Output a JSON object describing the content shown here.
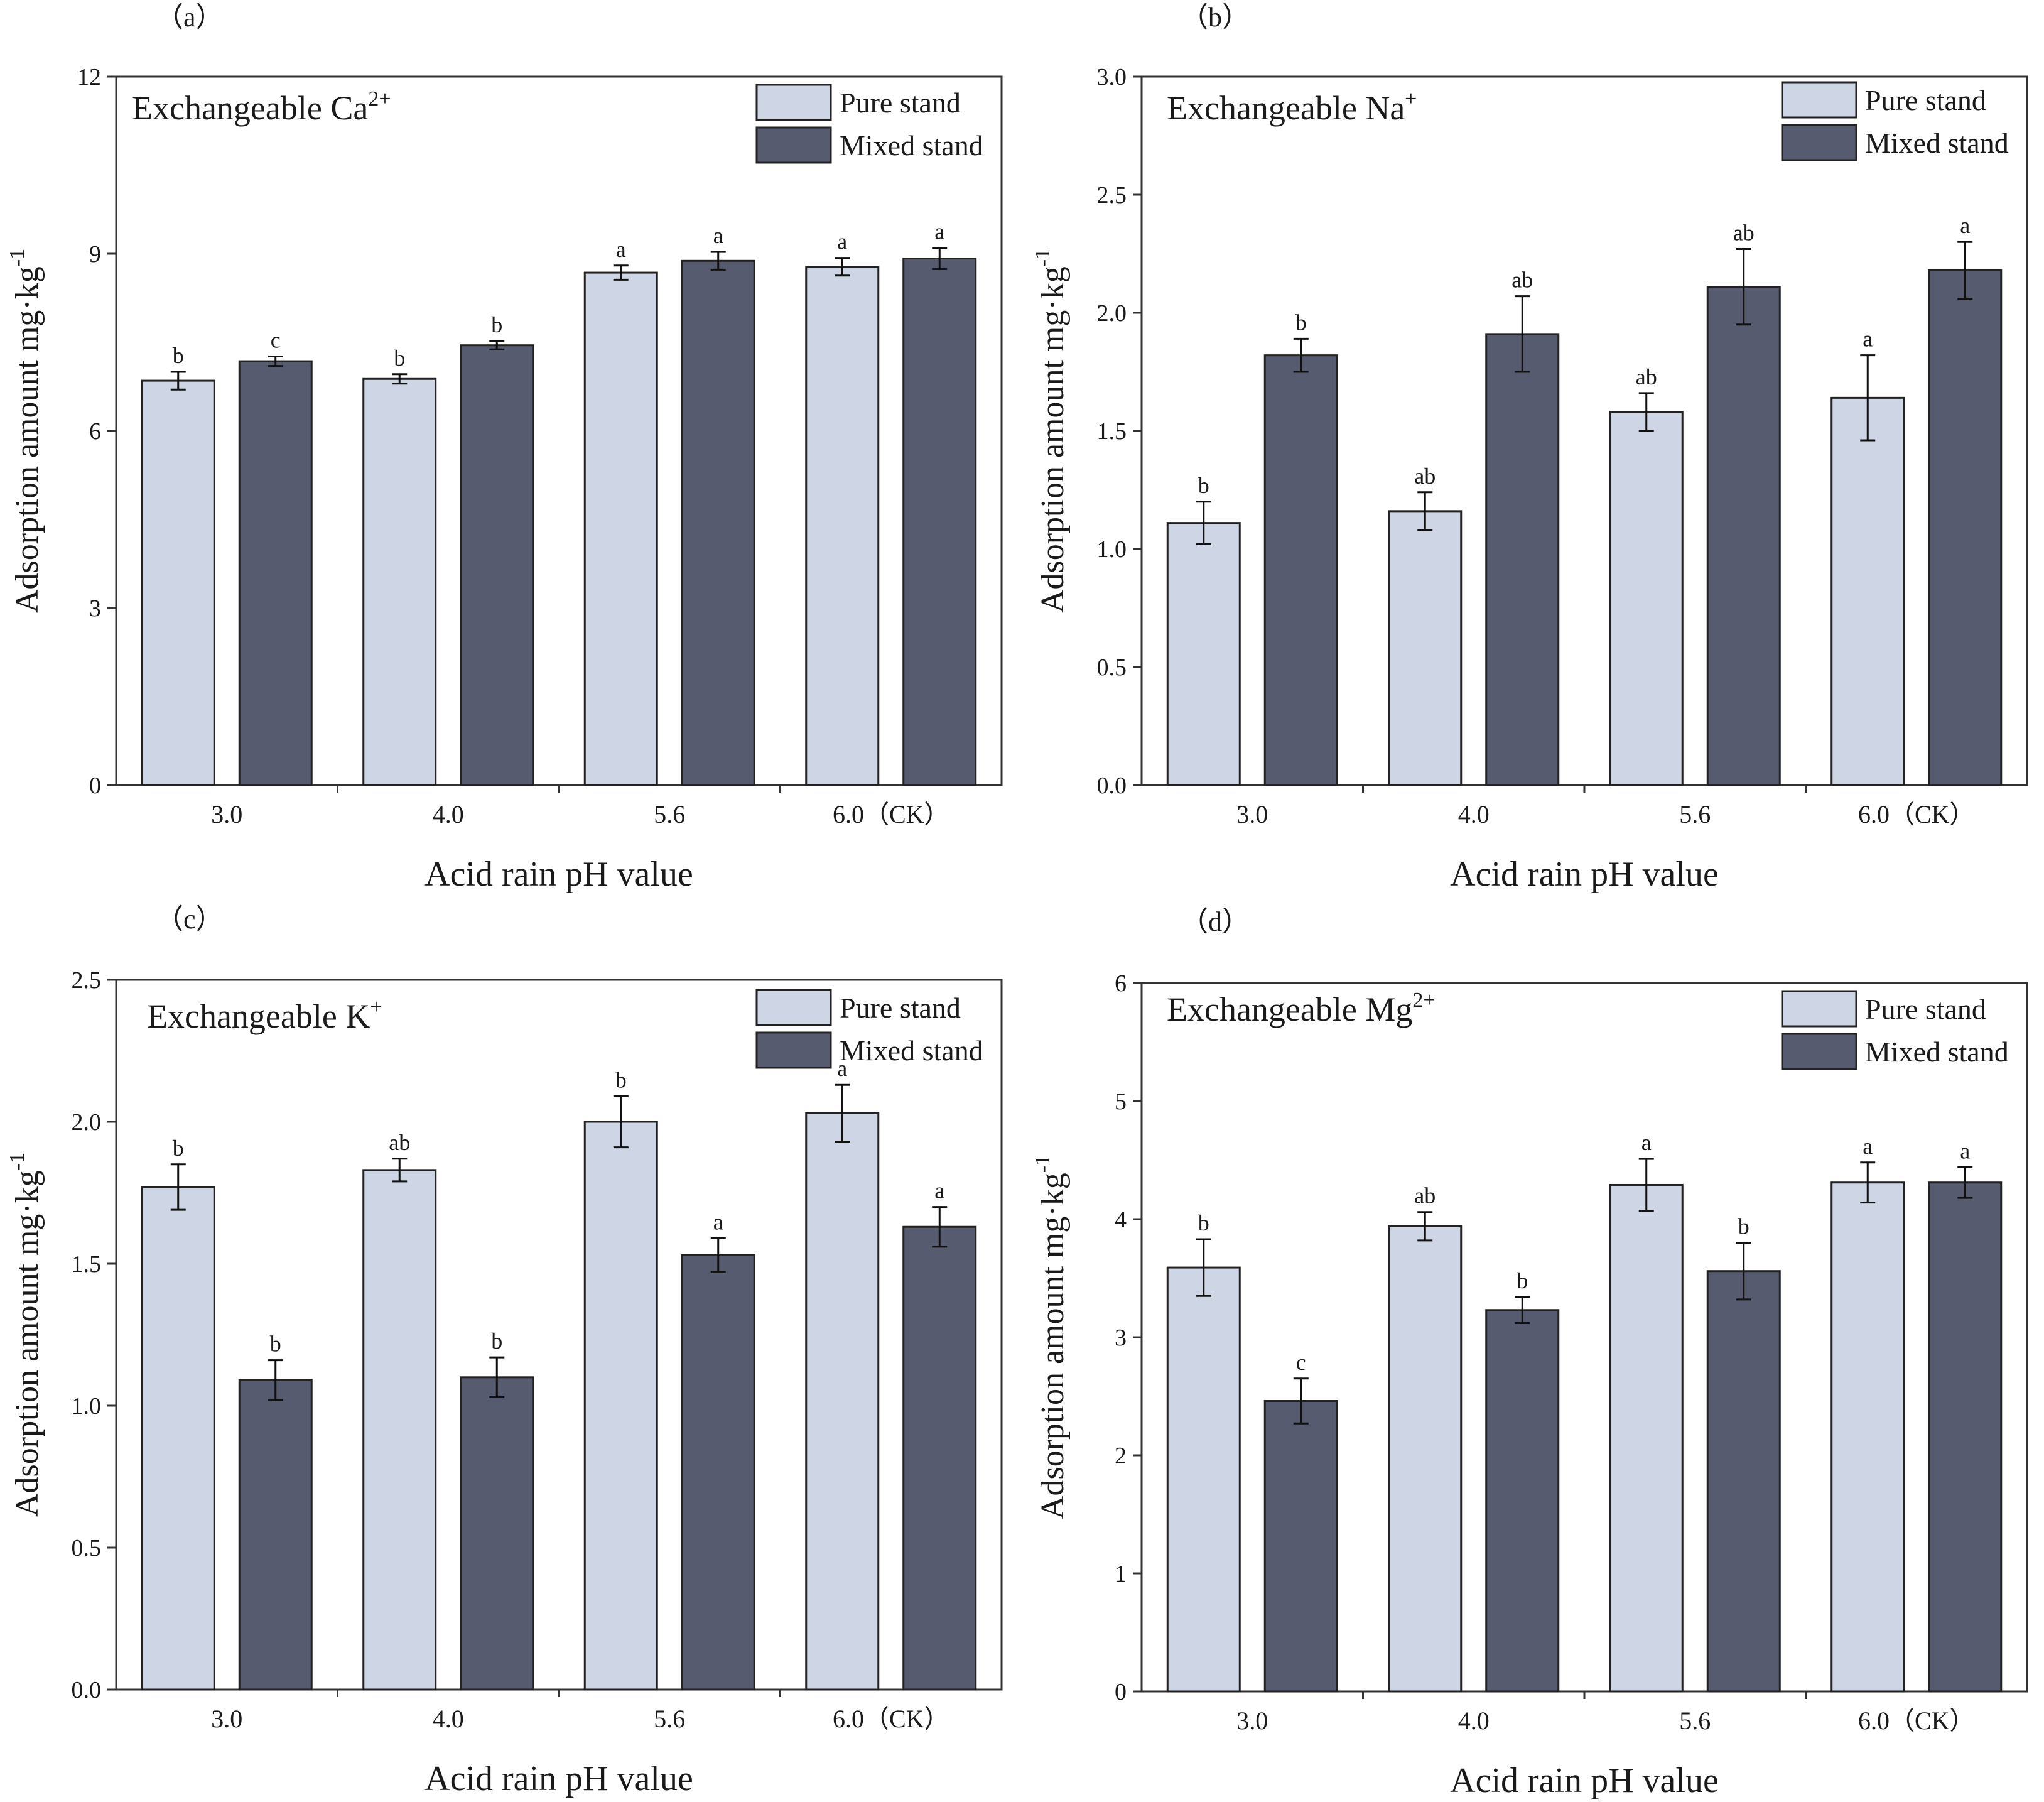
{
  "colors": {
    "pure_stand": "#ced6e6",
    "mixed_stand": "#565b70",
    "axis": "#333333",
    "bar_edge": "#222222"
  },
  "chart_data": [
    {
      "type": "bar",
      "panel_label": "（a）",
      "title": "Exchangeable Ca",
      "title_superscript": "2+",
      "xlabel": "Acid rain pH value",
      "ylabel": "Adsorption amount mg·kg",
      "ylabel_superscript": "-1",
      "ylim": [
        0,
        12
      ],
      "yticks": [
        0,
        3,
        6,
        9,
        12
      ],
      "ytick_labels": [
        "0",
        "3",
        "6",
        "9",
        "12"
      ],
      "categories": [
        "3.0",
        "4.0",
        "5.6",
        "6.0（CK）"
      ],
      "legend": [
        "Pure stand",
        "Mixed stand"
      ],
      "series": [
        {
          "name": "Pure stand",
          "values": [
            6.85,
            6.88,
            8.68,
            8.78
          ],
          "errors": [
            0.15,
            0.08,
            0.12,
            0.15
          ],
          "letters": [
            "b",
            "b",
            "a",
            "a"
          ]
        },
        {
          "name": "Mixed stand",
          "values": [
            7.18,
            7.45,
            8.88,
            8.92
          ],
          "errors": [
            0.08,
            0.07,
            0.15,
            0.18
          ],
          "letters": [
            "c",
            "b",
            "a",
            "a"
          ]
        }
      ]
    },
    {
      "type": "bar",
      "panel_label": "（b）",
      "title": "Exchangeable Na",
      "title_superscript": "+",
      "xlabel": "Acid rain pH value",
      "ylabel": "Adsorption amount mg·kg",
      "ylabel_superscript": "-1",
      "ylim": [
        0,
        3
      ],
      "yticks": [
        0,
        0.5,
        1,
        1.5,
        2,
        2.5,
        3
      ],
      "ytick_labels": [
        "0.0",
        "0.5",
        "1.0",
        "1.5",
        "2.0",
        "2.5",
        "3.0"
      ],
      "categories": [
        "3.0",
        "4.0",
        "5.6",
        "6.0（CK）"
      ],
      "legend": [
        "Pure stand",
        "Mixed stand"
      ],
      "series": [
        {
          "name": "Pure stand",
          "values": [
            1.11,
            1.16,
            1.58,
            1.64
          ],
          "errors": [
            0.09,
            0.08,
            0.08,
            0.18
          ],
          "letters": [
            "b",
            "ab",
            "ab",
            "a"
          ]
        },
        {
          "name": "Mixed stand",
          "values": [
            1.82,
            1.91,
            2.11,
            2.18
          ],
          "errors": [
            0.07,
            0.16,
            0.16,
            0.12
          ],
          "letters": [
            "b",
            "ab",
            "ab",
            "a"
          ]
        }
      ]
    },
    {
      "type": "bar",
      "panel_label": "（c）",
      "title": "Exchangeable K",
      "title_superscript": "+",
      "xlabel": "Acid rain pH value",
      "ylabel": "Adsorption amount mg·kg",
      "ylabel_superscript": "-1",
      "ylim": [
        0,
        2.5
      ],
      "yticks": [
        0,
        0.5,
        1,
        1.5,
        2,
        2.5
      ],
      "ytick_labels": [
        "0.0",
        "0.5",
        "1.0",
        "1.5",
        "2.0",
        "2.5"
      ],
      "categories": [
        "3.0",
        "4.0",
        "5.6",
        "6.0（CK）"
      ],
      "legend": [
        "Pure stand",
        "Mixed stand"
      ],
      "series": [
        {
          "name": "Pure stand",
          "values": [
            1.77,
            1.83,
            2.0,
            2.03
          ],
          "errors": [
            0.08,
            0.04,
            0.09,
            0.1
          ],
          "letters": [
            "b",
            "ab",
            "b",
            "a"
          ]
        },
        {
          "name": "Mixed stand",
          "values": [
            1.09,
            1.1,
            1.53,
            1.63
          ],
          "errors": [
            0.07,
            0.07,
            0.06,
            0.07
          ],
          "letters": [
            "b",
            "b",
            "a",
            "a"
          ]
        }
      ]
    },
    {
      "type": "bar",
      "panel_label": "（d）",
      "title": "Exchangeable Mg",
      "title_superscript": "2+",
      "xlabel": "Acid rain pH value",
      "ylabel": "Adsorption amount mg·kg",
      "ylabel_superscript": "-1",
      "ylim": [
        0,
        6
      ],
      "yticks": [
        0,
        1,
        2,
        3,
        4,
        5,
        6
      ],
      "ytick_labels": [
        "0",
        "1",
        "2",
        "3",
        "4",
        "5",
        "6"
      ],
      "categories": [
        "3.0",
        "4.0",
        "5.6",
        "6.0（CK）"
      ],
      "legend": [
        "Pure stand",
        "Mixed stand"
      ],
      "series": [
        {
          "name": "Pure stand",
          "values": [
            3.59,
            3.94,
            4.29,
            4.31
          ],
          "errors": [
            0.24,
            0.12,
            0.22,
            0.17
          ],
          "letters": [
            "b",
            "ab",
            "a",
            "a"
          ]
        },
        {
          "name": "Mixed stand",
          "values": [
            2.46,
            3.23,
            3.56,
            4.31
          ],
          "errors": [
            0.19,
            0.11,
            0.24,
            0.13
          ],
          "letters": [
            "c",
            "b",
            "b",
            "a"
          ]
        }
      ]
    }
  ]
}
